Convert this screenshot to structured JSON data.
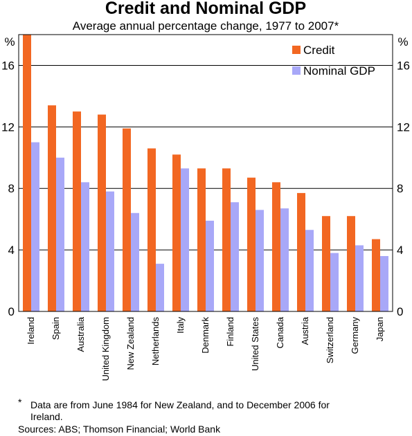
{
  "chart_data": {
    "type": "bar",
    "title": "Credit and Nominal GDP",
    "subtitle": "Average annual percentage change, 1977 to 2007*",
    "ylabel_left": "%",
    "ylabel_right": "%",
    "ylim": [
      0,
      18
    ],
    "yticks": [
      0,
      4,
      8,
      12,
      16
    ],
    "grid": true,
    "legend_position": "top-right",
    "categories": [
      "Ireland",
      "Spain",
      "Australia",
      "United Kingdom",
      "New Zealand",
      "Netherlands",
      "Italy",
      "Denmark",
      "Finland",
      "United States",
      "Canada",
      "Austria",
      "Switzerland",
      "Germany",
      "Japan"
    ],
    "series": [
      {
        "name": "Credit",
        "color": "#f26722",
        "values": [
          18.0,
          13.4,
          13.0,
          12.8,
          11.9,
          10.6,
          10.2,
          9.3,
          9.3,
          8.7,
          8.4,
          7.7,
          6.2,
          6.2,
          4.7
        ]
      },
      {
        "name": "Nominal GDP",
        "color": "#a8a8f8",
        "values": [
          11.0,
          10.0,
          8.4,
          7.8,
          6.4,
          3.1,
          9.3,
          5.9,
          7.1,
          6.6,
          6.7,
          5.3,
          3.8,
          4.3,
          3.6
        ]
      }
    ]
  },
  "footnote": {
    "marker": "*",
    "line1": "Data are from June 1984 for New Zealand, and to December 2006 for",
    "line2": "Ireland."
  },
  "sources": "Sources: ABS; Thomson Financial; World Bank"
}
